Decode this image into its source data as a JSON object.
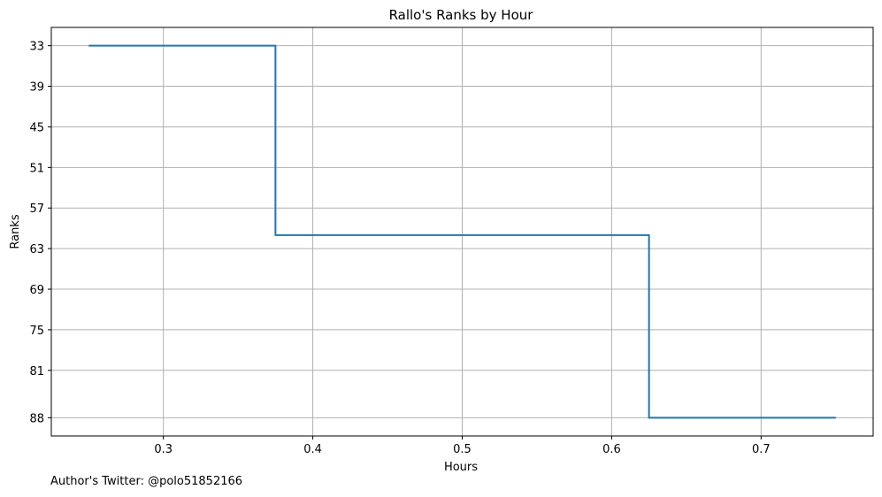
{
  "chart_data": {
    "type": "line",
    "step": "post",
    "title": "Rallo's Ranks by Hour",
    "xlabel": "Hours",
    "ylabel": "Ranks",
    "x": [
      0.25,
      0.375,
      0.625,
      0.75
    ],
    "y": [
      33,
      61,
      88,
      88
    ],
    "xlim": [
      0.225,
      0.775
    ],
    "ylim": [
      90.7,
      30.3
    ],
    "y_inverted": true,
    "xticks": [
      0.3,
      0.4,
      0.5,
      0.6,
      0.7
    ],
    "xtick_labels": [
      "0.3",
      "0.4",
      "0.5",
      "0.6",
      "0.7"
    ],
    "yticks": [
      33,
      39,
      45,
      51,
      57,
      63,
      69,
      75,
      81,
      88
    ],
    "ytick_labels": [
      "33",
      "39",
      "45",
      "51",
      "57",
      "63",
      "69",
      "75",
      "81",
      "88"
    ],
    "grid": true,
    "line_color": "#1f77b4",
    "grid_color": "#b0b0b0"
  },
  "footer": {
    "credit": "Author's Twitter: @polo51852166"
  }
}
